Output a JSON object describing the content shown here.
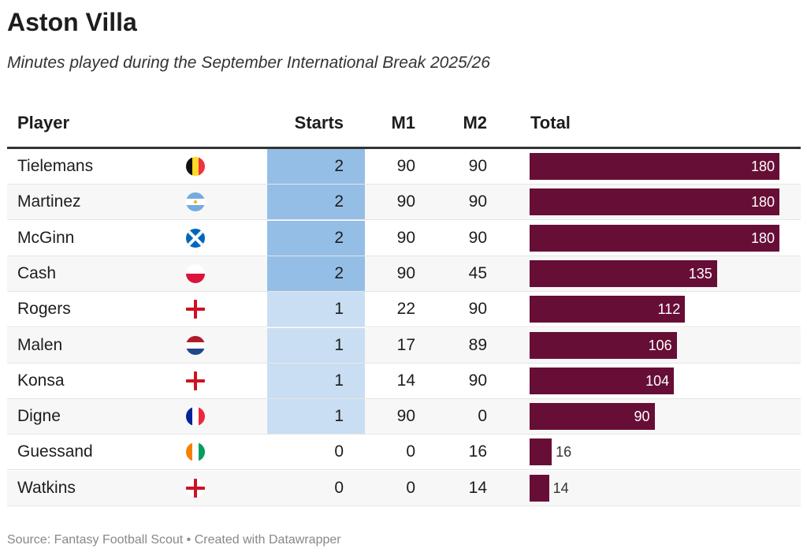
{
  "title": "Aston Villa",
  "subtitle": "Minutes played during the September International Break 2025/26",
  "footer": "Source: Fantasy Football Scout • Created with Datawrapper",
  "colors": {
    "bar": "#670e36",
    "starts_high": "#94bee6",
    "starts_low": "#c9def2",
    "alt_row": "#f7f7f7"
  },
  "chart_data": {
    "type": "table",
    "columns": [
      "Player",
      "Starts",
      "M1",
      "M2",
      "Total"
    ],
    "bar_max": 180,
    "rows": [
      {
        "player": "Tielemans",
        "flag": "belgium",
        "starts": "2",
        "m1": "90",
        "m2": "90",
        "total": 180
      },
      {
        "player": "Martinez",
        "flag": "argentina",
        "starts": "2",
        "m1": "90",
        "m2": "90",
        "total": 180
      },
      {
        "player": "McGinn",
        "flag": "scotland",
        "starts": "2",
        "m1": "90",
        "m2": "90",
        "total": 180
      },
      {
        "player": "Cash",
        "flag": "poland",
        "starts": "2",
        "m1": "90",
        "m2": "45",
        "total": 135
      },
      {
        "player": "Rogers",
        "flag": "england",
        "starts": "1",
        "m1": "22",
        "m2": "90",
        "total": 112
      },
      {
        "player": "Malen",
        "flag": "netherlands",
        "starts": "1",
        "m1": "17",
        "m2": "89",
        "total": 106
      },
      {
        "player": "Konsa",
        "flag": "england",
        "starts": "1",
        "m1": "14",
        "m2": "90",
        "total": 104
      },
      {
        "player": "Digne",
        "flag": "france",
        "starts": "1",
        "m1": "90",
        "m2": "0",
        "total": 90
      },
      {
        "player": "Guessand",
        "flag": "ivory-coast",
        "starts": "0",
        "m1": "0",
        "m2": "16",
        "total": 16
      },
      {
        "player": "Watkins",
        "flag": "england",
        "starts": "0",
        "m1": "0",
        "m2": "14",
        "total": 14
      }
    ]
  }
}
